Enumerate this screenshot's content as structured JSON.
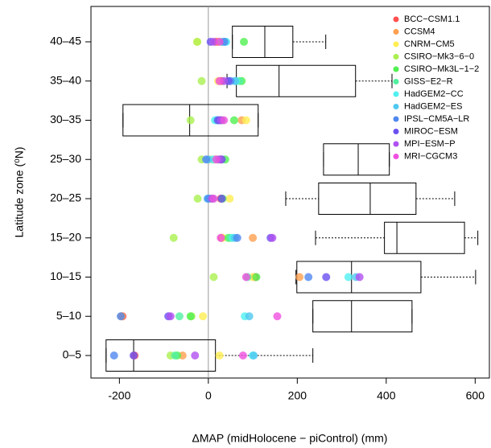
{
  "chart_data": {
    "type": "box_scatter",
    "x_label": "ΔMAP (midHolocene − piControl) (mm)",
    "y_label": "Latitude zone (⁰N)",
    "categories": [
      "0–5",
      "5–10",
      "10–15",
      "15–20",
      "20–25",
      "25–30",
      "30–35",
      "35–40",
      "40–45"
    ],
    "xlim": [
      -264,
      632
    ],
    "xticks": [
      -200,
      0,
      200,
      400,
      600
    ],
    "reference_line": 0,
    "boxes": [
      {
        "low": -230,
        "q1": -230,
        "median": -168,
        "q3": 16,
        "high": 235
      },
      {
        "low": 235,
        "q1": 235,
        "median": 322,
        "q3": 458,
        "high": 458
      },
      {
        "low": 197,
        "q1": 199,
        "median": 322,
        "q3": 478,
        "high": 601
      },
      {
        "low": 241,
        "q1": 396,
        "median": 424,
        "q3": 576,
        "high": 606
      },
      {
        "low": 174,
        "q1": 248,
        "median": 364,
        "q3": 467,
        "high": 554
      },
      {
        "low": 259,
        "q1": 259,
        "median": 337,
        "q3": 407,
        "high": 407
      },
      {
        "low": -192,
        "q1": -192,
        "median": -42,
        "q3": 112,
        "high": 112
      },
      {
        "low": 42,
        "q1": 63,
        "median": 159,
        "q3": 331,
        "high": 413
      },
      {
        "low": 54,
        "q1": 54,
        "median": 127,
        "q3": 190,
        "high": 264
      }
    ],
    "legend_position": "top-right",
    "series": [
      {
        "name": "BCC−CSM1.1",
        "color": "#ff5050",
        "values": [
          -166,
          -193,
          105,
          30,
          28,
          28,
          30,
          28,
          18
        ]
      },
      {
        "name": "CCSM4",
        "color": "#ffa050",
        "values": [
          -58,
          -195,
          205,
          100,
          5,
          15,
          75,
          30,
          22
        ]
      },
      {
        "name": "CNRM−CM5",
        "color": "#ffee50",
        "values": [
          25,
          -12,
          100,
          32,
          48,
          5,
          85,
          22,
          -25
        ]
      },
      {
        "name": "CSIRO−Mk3−6−0",
        "color": "#aaf050",
        "values": [
          -85,
          -38,
          12,
          -78,
          -24,
          -15,
          -40,
          -15,
          -25
        ]
      },
      {
        "name": "CSIRO−Mk3L−1−2",
        "color": "#50f050",
        "values": [
          -70,
          -40,
          108,
          45,
          32,
          38,
          58,
          75,
          80
        ]
      },
      {
        "name": "GISS−E2−R",
        "color": "#50f0a0",
        "values": [
          -75,
          -65,
          88,
          50,
          10,
          22,
          30,
          70,
          30
        ]
      },
      {
        "name": "HadGEM2−CC",
        "color": "#50f0f0",
        "values": [
          100,
          82,
          315,
          55,
          2,
          10,
          15,
          62,
          40
        ]
      },
      {
        "name": "HadGEM2−ES",
        "color": "#50c8f0",
        "values": [
          102,
          92,
          332,
          60,
          -2,
          0,
          20,
          60,
          38
        ]
      },
      {
        "name": "IPSL−CM5A−LR",
        "color": "#5088f0",
        "values": [
          -212,
          -197,
          225,
          65,
          0,
          -5,
          25,
          50,
          35
        ]
      },
      {
        "name": "MIROC−ESM",
        "color": "#6a50f0",
        "values": [
          -168,
          -90,
          265,
          140,
          30,
          30,
          22,
          45,
          5
        ]
      },
      {
        "name": "MPI−ESM−P",
        "color": "#b050f0",
        "values": [
          -30,
          -85,
          340,
          144,
          8,
          25,
          28,
          35,
          12
        ]
      },
      {
        "name": "MRI−CGCM3",
        "color": "#f050e0",
        "values": [
          78,
          155,
          85,
          28,
          12,
          18,
          35,
          25,
          25
        ]
      }
    ]
  }
}
